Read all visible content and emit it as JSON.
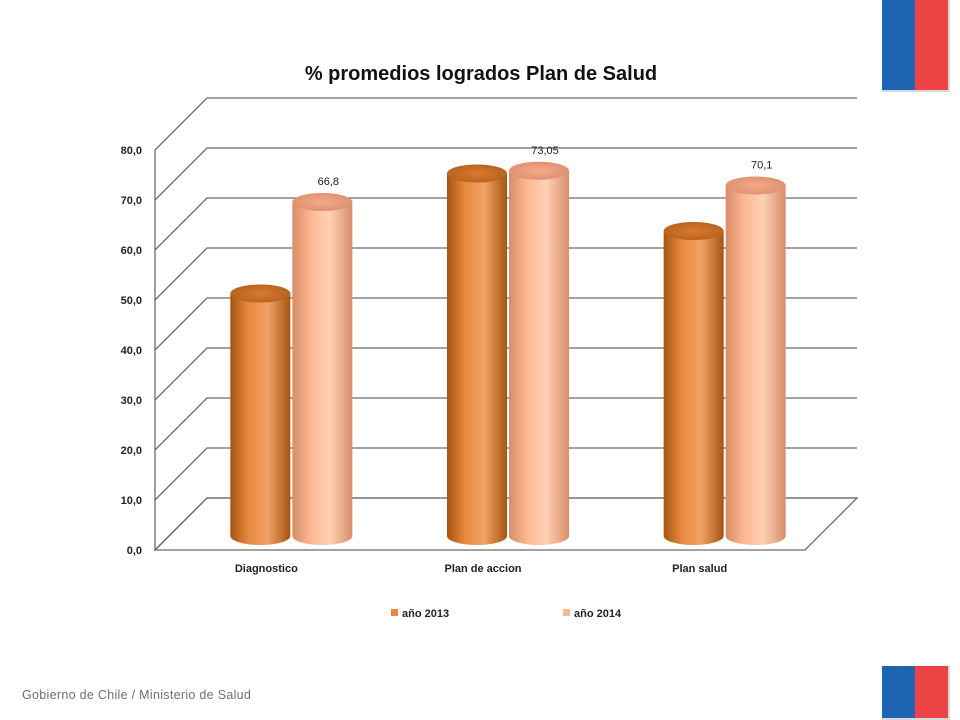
{
  "footer": {
    "text": "Gobierno de Chile / Ministerio de Salud"
  },
  "flag": {
    "blue": "#1f63b3",
    "red": "#ee4344"
  },
  "chart_data": {
    "type": "bar",
    "style": "3d-cylinder",
    "title": "% promedios  logrados  Plan de Salud",
    "categories": [
      "Diagnostico",
      "Plan de accion",
      "Plan salud"
    ],
    "series": [
      {
        "name": "año 2013",
        "values": [
          48.5,
          72.5,
          61.0
        ],
        "color": "#e8893f"
      },
      {
        "name": "año 2014",
        "values": [
          66.8,
          73.05,
          70.1
        ],
        "color": "#fbb792"
      }
    ],
    "data_labels": [
      {
        "series": 1,
        "index": 0,
        "text": "66,8"
      },
      {
        "series": 1,
        "index": 1,
        "text": "73,05"
      },
      {
        "series": 1,
        "index": 2,
        "text": "70,1"
      }
    ],
    "ylim": [
      0,
      80
    ],
    "yticks": [
      0,
      10,
      20,
      30,
      40,
      50,
      60,
      70,
      80
    ],
    "ytick_labels": [
      "0,0",
      "10,0",
      "20,0",
      "30,0",
      "40,0",
      "50,0",
      "60,0",
      "70,0",
      "80,0"
    ],
    "grid": true,
    "legend_position": "bottom"
  }
}
